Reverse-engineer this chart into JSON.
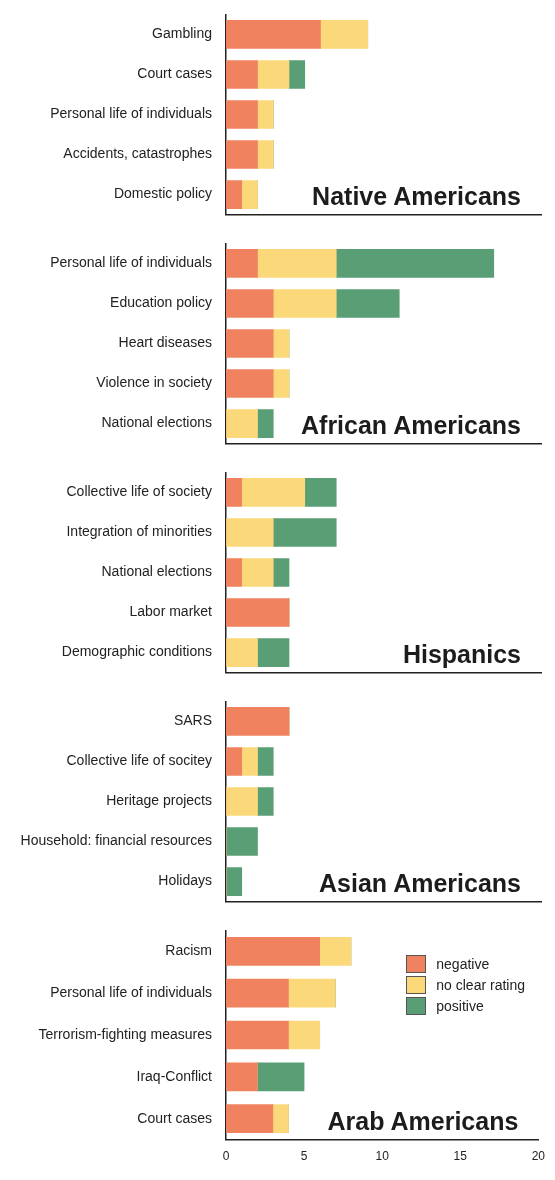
{
  "chart_data": [
    {
      "type": "bar",
      "orientation": "horizontal",
      "stacked": true,
      "categories": [
        "Gambling",
        "Court cases",
        "Personal life of individuals",
        "Accidents, catastrophes",
        "Domestic policy"
      ],
      "series": [
        {
          "color": "#f0825f",
          "values": [
            6,
            2,
            2,
            2,
            1
          ]
        },
        {
          "color": "#fbd97a",
          "values": [
            3,
            2,
            1,
            1,
            1
          ]
        },
        {
          "color": "#5a9e76",
          "values": [
            0,
            1,
            0,
            0,
            0
          ]
        }
      ],
      "xlim": [
        0,
        20
      ],
      "xticks": [
        0,
        5,
        10,
        15,
        20
      ],
      "tick_labels": "y",
      "grid": false,
      "legend": false,
      "annotations": [
        "Native Americans"
      ]
    },
    {
      "type": "bar",
      "orientation": "horizontal",
      "stacked": true,
      "categories": [
        "Personal life of individuals",
        "Education policy",
        "Heart diseases",
        "Violence in society",
        "National elections"
      ],
      "series": [
        {
          "color": "#f0825f",
          "values": [
            2,
            3,
            3,
            3,
            0
          ]
        },
        {
          "color": "#fbd97a",
          "values": [
            5,
            4,
            1,
            1,
            2
          ]
        },
        {
          "color": "#5a9e76",
          "values": [
            10,
            4,
            0,
            0,
            1
          ]
        }
      ],
      "xlim": [
        0,
        20
      ],
      "xticks": [
        0,
        5,
        10,
        15,
        20
      ],
      "tick_labels": "y",
      "grid": false,
      "legend": false,
      "annotations": [
        "African Americans"
      ]
    },
    {
      "type": "bar",
      "orientation": "horizontal",
      "stacked": true,
      "categories": [
        "Collective life of society",
        "Integration of minorities",
        "National elections",
        "Labor market",
        "Demographic conditions"
      ],
      "series": [
        {
          "color": "#f0825f",
          "values": [
            1,
            0,
            1,
            4,
            0
          ]
        },
        {
          "color": "#fbd97a",
          "values": [
            4,
            3,
            2,
            0,
            2
          ]
        },
        {
          "color": "#5a9e76",
          "values": [
            2,
            4,
            1,
            0,
            2
          ]
        }
      ],
      "xlim": [
        0,
        20
      ],
      "xticks": [
        0,
        5,
        10,
        15,
        20
      ],
      "tick_labels": "y",
      "grid": false,
      "legend": false,
      "annotations": [
        "Hispanics"
      ]
    },
    {
      "type": "bar",
      "orientation": "horizontal",
      "stacked": true,
      "categories": [
        "SARS",
        "Collective life of socitey",
        "Heritage projects",
        "Household: financial resources",
        "Holidays"
      ],
      "series": [
        {
          "color": "#f0825f",
          "values": [
            4,
            1,
            0,
            0,
            0
          ]
        },
        {
          "color": "#fbd97a",
          "values": [
            0,
            1,
            2,
            0,
            0
          ]
        },
        {
          "color": "#5a9e76",
          "values": [
            0,
            1,
            1,
            2,
            1
          ]
        }
      ],
      "xlim": [
        0,
        20
      ],
      "xticks": [
        0,
        5,
        10,
        15,
        20
      ],
      "tick_labels": "y",
      "grid": false,
      "legend": false,
      "annotations": [
        "Asian Americans"
      ]
    },
    {
      "type": "bar",
      "orientation": "horizontal",
      "stacked": true,
      "categories": [
        "Racism",
        "Personal life of individuals",
        "Terrorism-fighting measures",
        "Iraq-Conflict",
        "Court cases"
      ],
      "series": [
        {
          "name": "negative",
          "color": "#f0825f",
          "values": [
            6,
            4,
            4,
            2,
            3
          ]
        },
        {
          "name": "no clear rating",
          "color": "#fbd97a",
          "values": [
            2,
            3,
            2,
            0,
            1
          ]
        },
        {
          "name": "positive",
          "color": "#5a9e76",
          "values": [
            0,
            0,
            0,
            3,
            0
          ]
        }
      ],
      "xlim": [
        0,
        20
      ],
      "xticks": [
        0,
        5,
        10,
        15,
        20
      ],
      "grid": false,
      "legend": "top right",
      "annotations": [
        "Arab Americans"
      ]
    }
  ]
}
